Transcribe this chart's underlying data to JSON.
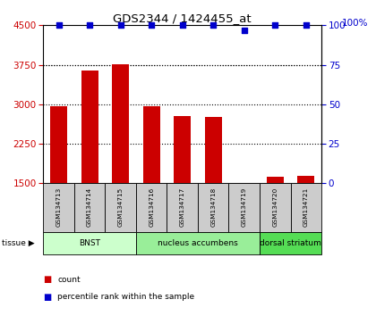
{
  "title": "GDS2344 / 1424455_at",
  "samples": [
    "GSM134713",
    "GSM134714",
    "GSM134715",
    "GSM134716",
    "GSM134717",
    "GSM134718",
    "GSM134719",
    "GSM134720",
    "GSM134721"
  ],
  "counts": [
    2960,
    3640,
    3760,
    2960,
    2780,
    2760,
    1500,
    1630,
    1640
  ],
  "percentiles": [
    100,
    100,
    100,
    100,
    100,
    100,
    97,
    100,
    100
  ],
  "ylim_left": [
    1500,
    4500
  ],
  "ylim_right": [
    0,
    100
  ],
  "yticks_left": [
    1500,
    2250,
    3000,
    3750,
    4500
  ],
  "yticks_right": [
    0,
    25,
    50,
    75,
    100
  ],
  "bar_color": "#cc0000",
  "percentile_color": "#0000cc",
  "grid_color": "#000000",
  "tissue_groups": [
    {
      "label": "BNST",
      "samples": [
        0,
        1,
        2
      ],
      "color": "#ccffcc"
    },
    {
      "label": "nucleus accumbens",
      "samples": [
        3,
        4,
        5,
        6
      ],
      "color": "#99ee99"
    },
    {
      "label": "dorsal striatum",
      "samples": [
        7,
        8
      ],
      "color": "#55dd55"
    }
  ],
  "tissue_label": "tissue",
  "legend_items": [
    {
      "label": "count",
      "color": "#cc0000"
    },
    {
      "label": "percentile rank within the sample",
      "color": "#0000cc"
    }
  ],
  "bar_width": 0.55,
  "fig_bg": "#ffffff",
  "plot_bg": "#ffffff",
  "sample_bg": "#cccccc",
  "percentile_near_97": 97
}
